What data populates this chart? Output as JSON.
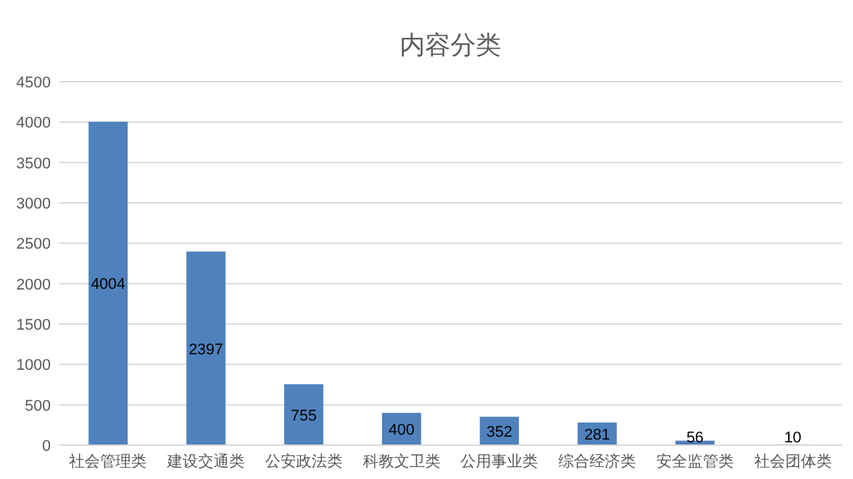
{
  "chart_data": {
    "type": "bar",
    "title": "内容分类",
    "categories": [
      "社会管理类",
      "建设交通类",
      "公安政法类",
      "科教文卫类",
      "公用事业类",
      "综合经济类",
      "安全监管类",
      "社会团体类"
    ],
    "values": [
      4004,
      2397,
      755,
      400,
      352,
      281,
      56,
      10
    ],
    "color": "#4f81bd",
    "ylim": [
      0,
      4500
    ],
    "yticks": [
      0,
      500,
      1000,
      1500,
      2000,
      2500,
      3000,
      3500,
      4000,
      4500
    ],
    "grid": "y",
    "data_labels": true
  }
}
